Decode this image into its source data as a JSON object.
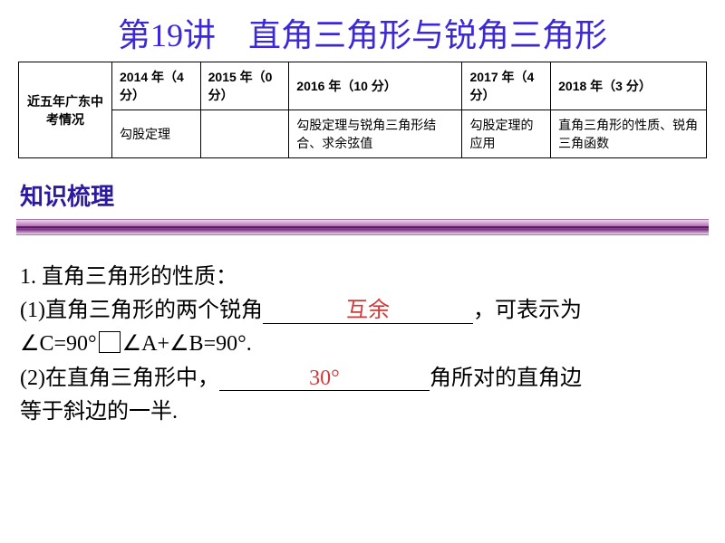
{
  "title": {
    "prefix": "第",
    "number": "19",
    "suffix": "讲　直角三角形与锐角三角形",
    "color": "#3b28d9",
    "fontsize": 36
  },
  "exam_table": {
    "rowhead": "近五年广东中考情况",
    "header_cells": [
      "2014 年（4 分）",
      "2015 年（0 分）",
      "2016 年（10 分）",
      "2017 年（4 分）",
      "2018 年（3 分）"
    ],
    "body_cells": [
      "勾股定理",
      "",
      "勾股定理与锐角三角形结合、求余弦值",
      "勾股定理的应用",
      "直角三角形的性质、锐角三角函数"
    ],
    "border_color": "#000000",
    "fontsize": 14
  },
  "section": {
    "label": "知识梳理",
    "color": "#2b1aa0",
    "fontsize": 26
  },
  "rule_style": {
    "gradient_top": "#e9d6ea",
    "gradient_mid": "#b76ab3",
    "gradient_deep": "#7b2e82",
    "line_color": "#5a1c62"
  },
  "content": {
    "line1": "1.  直角三角形的性质：",
    "item1_pre": "(1)直角三角形的两个锐角",
    "item1_blank": "互余",
    "item1_post": "，可表示为",
    "item1_line2_pre": "∠C=90°",
    "item1_line2_post": "∠A+∠B=90°.",
    "item2_pre": "(2)在直角三角形中，",
    "item2_blank": "30°",
    "item2_post": "角所对的直角边",
    "item2_line2": "等于斜边的一半.",
    "blank_color": "#d23b3b",
    "fontsize": 24
  }
}
